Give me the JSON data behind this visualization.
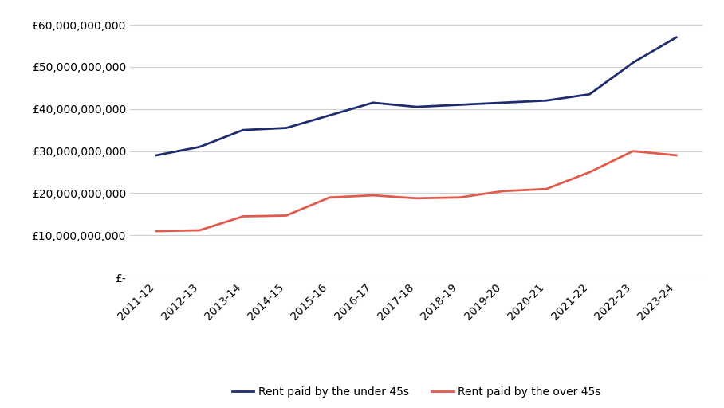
{
  "years": [
    "2011-12",
    "2012-13",
    "2013-14",
    "2014-15",
    "2015-16",
    "2016-17",
    "2017-18",
    "2018-19",
    "2019-20",
    "2020-21",
    "2021-22",
    "2022-23",
    "2023-24"
  ],
  "under_45": [
    29000000000,
    31000000000,
    35000000000,
    35500000000,
    38500000000,
    41500000000,
    40500000000,
    41000000000,
    41500000000,
    42000000000,
    43500000000,
    51000000000,
    57000000000
  ],
  "over_45": [
    11000000000,
    11200000000,
    14500000000,
    14700000000,
    19000000000,
    19500000000,
    18800000000,
    19000000000,
    20500000000,
    21000000000,
    25000000000,
    30000000000,
    29000000000
  ],
  "under_45_color": "#1f2d6e",
  "over_45_color": "#e05a4e",
  "legend_under": "Rent paid by the under 45s",
  "legend_over": "Rent paid by the over 45s",
  "ylim": [
    0,
    62000000000
  ],
  "yticks": [
    0,
    10000000000,
    20000000000,
    30000000000,
    40000000000,
    50000000000,
    60000000000
  ],
  "background_color": "#ffffff",
  "grid_color": "#d0d0d0",
  "line_width": 2.0,
  "tick_fontsize": 10,
  "legend_fontsize": 10
}
